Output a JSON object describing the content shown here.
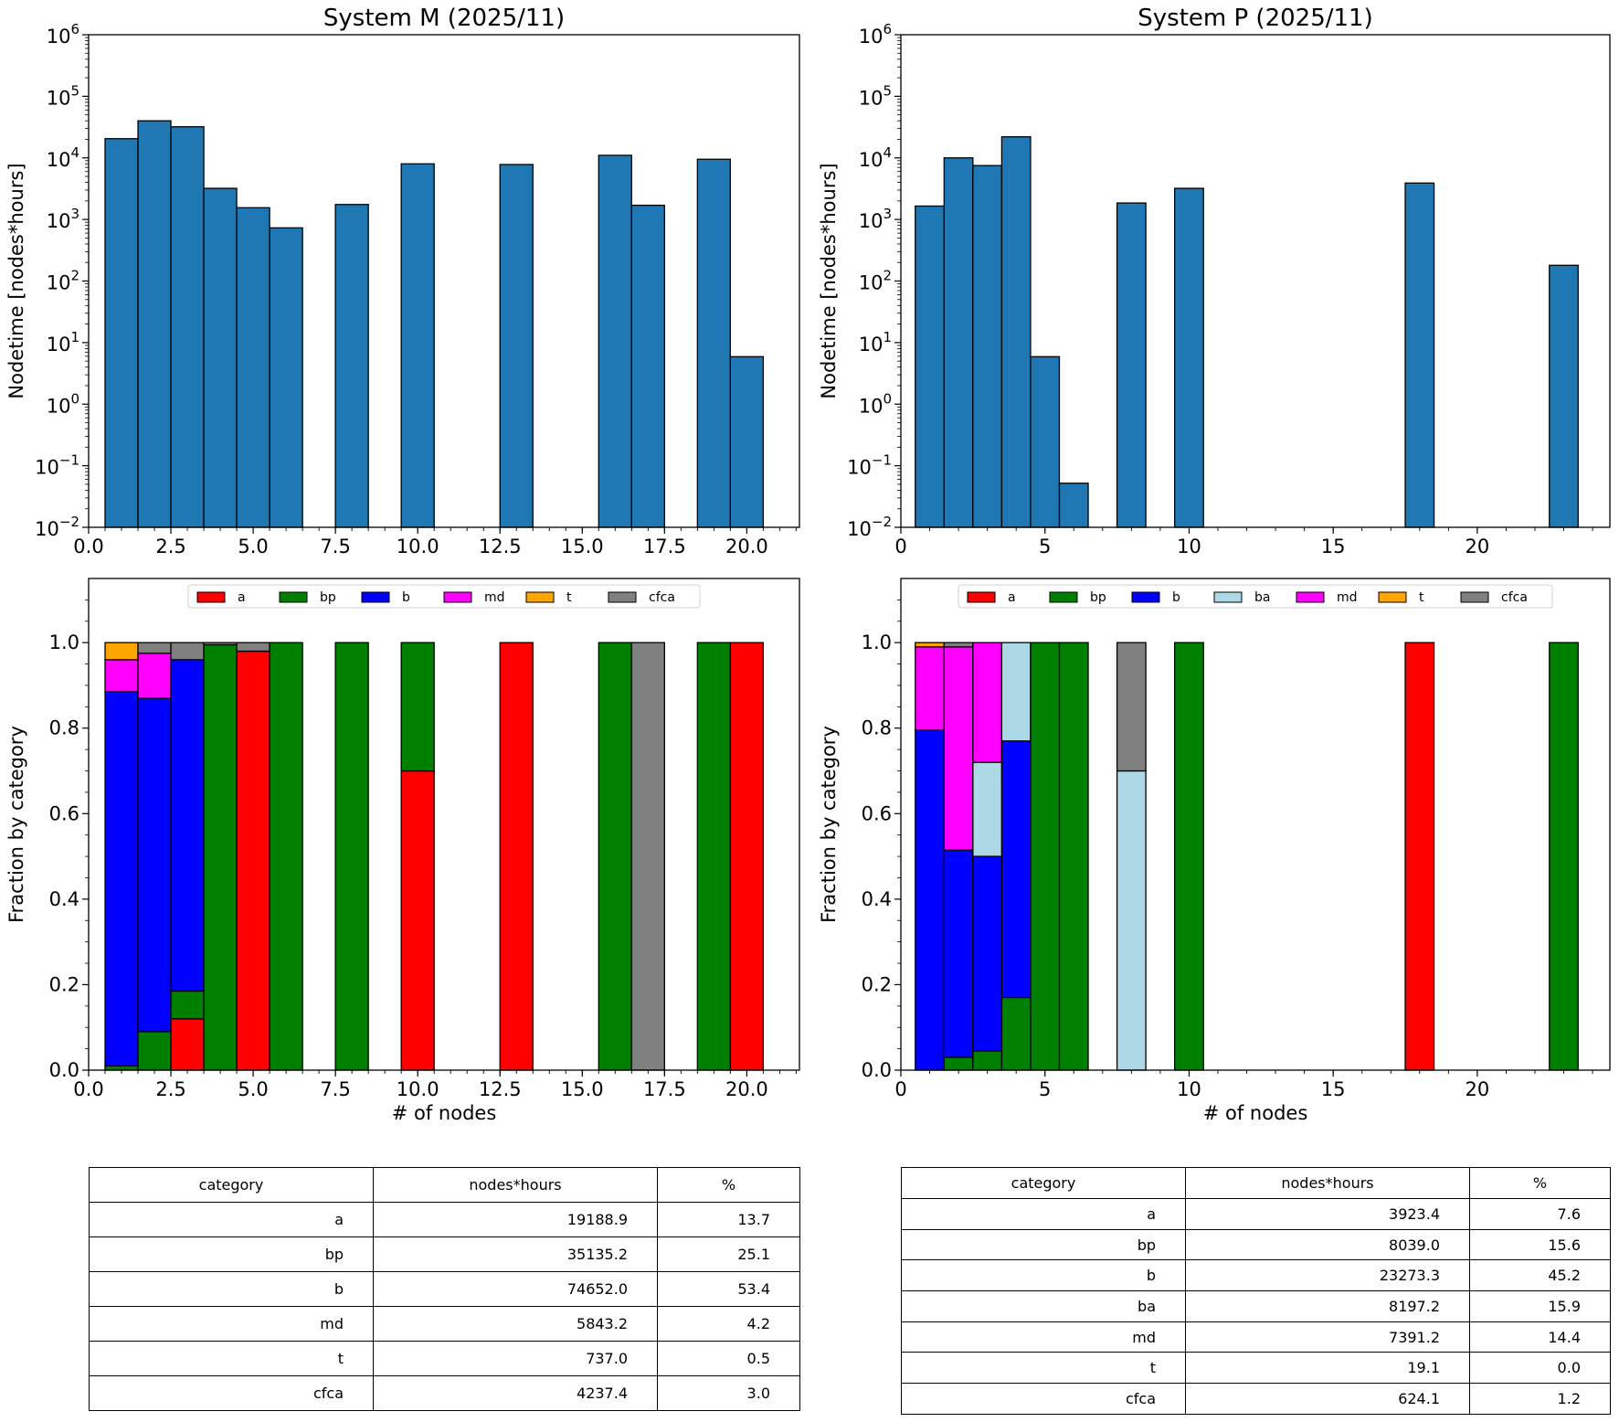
{
  "chart_data": [
    {
      "type": "bar",
      "panel": "top-left",
      "title": "System M (2025/11)",
      "xlabel": "",
      "ylabel": "Nodetime [nodes*hours]",
      "yscale": "log",
      "ylim": [
        0.01,
        1000000
      ],
      "xlim": [
        0,
        21.6
      ],
      "xticks": [
        "0.0",
        "2.5",
        "5.0",
        "7.5",
        "10.0",
        "12.5",
        "15.0",
        "17.5",
        "20.0"
      ],
      "xtick_values": [
        0,
        2.5,
        5,
        7.5,
        10,
        12.5,
        15,
        17.5,
        20
      ],
      "ytick_labels": [
        {
          "base": "10",
          "exp": "−2",
          "value": 0.01
        },
        {
          "base": "10",
          "exp": "−1",
          "value": 0.1
        },
        {
          "base": "10",
          "exp": "0",
          "value": 1
        },
        {
          "base": "10",
          "exp": "1",
          "value": 10
        },
        {
          "base": "10",
          "exp": "2",
          "value": 100
        },
        {
          "base": "10",
          "exp": "3",
          "value": 1000
        },
        {
          "base": "10",
          "exp": "4",
          "value": 10000
        },
        {
          "base": "10",
          "exp": "5",
          "value": 100000
        },
        {
          "base": "10",
          "exp": "6",
          "value": 1000000
        }
      ],
      "bar_color": "#1f77b4",
      "x": [
        1,
        2,
        3,
        4,
        5,
        6,
        8,
        10,
        13,
        16,
        17,
        19,
        20
      ],
      "values": [
        20500,
        40000,
        32000,
        3200,
        1550,
        730,
        1750,
        8000,
        7800,
        11000,
        1700,
        9500,
        5.9
      ]
    },
    {
      "type": "bar",
      "panel": "top-right",
      "title": "System P (2025/11)",
      "xlabel": "",
      "ylabel": "Nodetime [nodes*hours]",
      "yscale": "log",
      "ylim": [
        0.01,
        1000000
      ],
      "xlim": [
        0,
        24.6
      ],
      "xticks": [
        "0",
        "5",
        "10",
        "15",
        "20"
      ],
      "xtick_values": [
        0,
        5,
        10,
        15,
        20
      ],
      "ytick_labels": [
        {
          "base": "10",
          "exp": "−2",
          "value": 0.01
        },
        {
          "base": "10",
          "exp": "−1",
          "value": 0.1
        },
        {
          "base": "10",
          "exp": "0",
          "value": 1
        },
        {
          "base": "10",
          "exp": "1",
          "value": 10
        },
        {
          "base": "10",
          "exp": "2",
          "value": 100
        },
        {
          "base": "10",
          "exp": "3",
          "value": 1000
        },
        {
          "base": "10",
          "exp": "4",
          "value": 10000
        },
        {
          "base": "10",
          "exp": "5",
          "value": 100000
        },
        {
          "base": "10",
          "exp": "6",
          "value": 1000000
        }
      ],
      "bar_color": "#1f77b4",
      "x": [
        1,
        2,
        3,
        4,
        5,
        6,
        8,
        10,
        18,
        23
      ],
      "values": [
        1650,
        10000,
        7500,
        22000,
        5.9,
        0.052,
        1850,
        3200,
        3900,
        180
      ]
    },
    {
      "type": "bar",
      "stacked": true,
      "panel": "middle-left",
      "title": "",
      "xlabel": "# of nodes",
      "ylabel": "Fraction by category",
      "ylim": [
        0,
        1.15
      ],
      "xlim": [
        0,
        21.6
      ],
      "xticks": [
        "0.0",
        "2.5",
        "5.0",
        "7.5",
        "10.0",
        "12.5",
        "15.0",
        "17.5",
        "20.0"
      ],
      "xtick_values": [
        0,
        2.5,
        5,
        7.5,
        10,
        12.5,
        15,
        17.5,
        20
      ],
      "yticks": [
        "0.0",
        "0.2",
        "0.4",
        "0.6",
        "0.8",
        "1.0"
      ],
      "ytick_values": [
        0,
        0.2,
        0.4,
        0.6,
        0.8,
        1.0
      ],
      "legend_position": "top-center",
      "legend": [
        {
          "name": "a",
          "color": "#ff0000"
        },
        {
          "name": "bp",
          "color": "#008000"
        },
        {
          "name": "b",
          "color": "#0000ff"
        },
        {
          "name": "md",
          "color": "#ff00ff"
        },
        {
          "name": "t",
          "color": "#ffa500"
        },
        {
          "name": "cfca",
          "color": "#808080"
        }
      ],
      "x": [
        1,
        2,
        3,
        4,
        5,
        6,
        8,
        10,
        13,
        16,
        17,
        19,
        20
      ],
      "series": [
        {
          "name": "a",
          "color": "#ff0000",
          "values": [
            0,
            0,
            0.12,
            0,
            0.98,
            0,
            0,
            0.7,
            1.0,
            0,
            0,
            0,
            1.0
          ]
        },
        {
          "name": "bp",
          "color": "#008000",
          "values": [
            0.01,
            0.09,
            0.065,
            0.995,
            0,
            1.0,
            1.0,
            0.3,
            0,
            1.0,
            0,
            1.0,
            0
          ]
        },
        {
          "name": "b",
          "color": "#0000ff",
          "values": [
            0.875,
            0.78,
            0.775,
            0,
            0,
            0,
            0,
            0,
            0,
            0,
            0,
            0,
            0
          ]
        },
        {
          "name": "md",
          "color": "#ff00ff",
          "values": [
            0.075,
            0.105,
            0,
            0,
            0,
            0,
            0,
            0,
            0,
            0,
            0,
            0,
            0
          ]
        },
        {
          "name": "t",
          "color": "#ffa500",
          "values": [
            0.04,
            0,
            0,
            0,
            0,
            0,
            0,
            0,
            0,
            0,
            0,
            0,
            0
          ]
        },
        {
          "name": "cfca",
          "color": "#808080",
          "values": [
            0,
            0.025,
            0.04,
            0.005,
            0.02,
            0,
            0,
            0,
            0,
            0,
            1.0,
            0,
            0
          ]
        }
      ]
    },
    {
      "type": "bar",
      "stacked": true,
      "panel": "middle-right",
      "title": "",
      "xlabel": "# of nodes",
      "ylabel": "Fraction by category",
      "ylim": [
        0,
        1.15
      ],
      "xlim": [
        0,
        24.6
      ],
      "xticks": [
        "0",
        "5",
        "10",
        "15",
        "20"
      ],
      "xtick_values": [
        0,
        5,
        10,
        15,
        20
      ],
      "yticks": [
        "0.0",
        "0.2",
        "0.4",
        "0.6",
        "0.8",
        "1.0"
      ],
      "ytick_values": [
        0,
        0.2,
        0.4,
        0.6,
        0.8,
        1.0
      ],
      "legend_position": "top-center",
      "legend": [
        {
          "name": "a",
          "color": "#ff0000"
        },
        {
          "name": "bp",
          "color": "#008000"
        },
        {
          "name": "b",
          "color": "#0000ff"
        },
        {
          "name": "ba",
          "color": "#add8e6"
        },
        {
          "name": "md",
          "color": "#ff00ff"
        },
        {
          "name": "t",
          "color": "#ffa500"
        },
        {
          "name": "cfca",
          "color": "#808080"
        }
      ],
      "x": [
        1,
        2,
        3,
        4,
        5,
        6,
        8,
        10,
        18,
        23
      ],
      "series": [
        {
          "name": "a",
          "color": "#ff0000",
          "values": [
            0,
            0,
            0,
            0,
            0,
            0,
            0,
            0,
            1.0,
            0
          ]
        },
        {
          "name": "bp",
          "color": "#008000",
          "values": [
            0,
            0.03,
            0.045,
            0.17,
            1.0,
            1.0,
            0,
            1.0,
            0,
            1.0
          ]
        },
        {
          "name": "b",
          "color": "#0000ff",
          "values": [
            0.795,
            0.485,
            0.455,
            0.6,
            0,
            0,
            0,
            0,
            0,
            0
          ]
        },
        {
          "name": "ba",
          "color": "#add8e6",
          "values": [
            0,
            0,
            0.22,
            0.23,
            0,
            0,
            0.7,
            0,
            0,
            0
          ]
        },
        {
          "name": "md",
          "color": "#ff00ff",
          "values": [
            0.195,
            0.475,
            0.28,
            0,
            0,
            0,
            0,
            0,
            0,
            0
          ]
        },
        {
          "name": "t",
          "color": "#ffa500",
          "values": [
            0.01,
            0,
            0,
            0,
            0,
            0,
            0,
            0,
            0,
            0
          ]
        },
        {
          "name": "cfca",
          "color": "#808080",
          "values": [
            0,
            0.01,
            0,
            0,
            0,
            0,
            0.3,
            0,
            0,
            0
          ]
        }
      ]
    }
  ],
  "tables": [
    {
      "headers": [
        "category",
        "nodes*hours",
        "%"
      ],
      "rows": [
        [
          "a",
          "19188.9",
          "13.7"
        ],
        [
          "bp",
          "35135.2",
          "25.1"
        ],
        [
          "b",
          "74652.0",
          "53.4"
        ],
        [
          "md",
          "5843.2",
          "4.2"
        ],
        [
          "t",
          "737.0",
          "0.5"
        ],
        [
          "cfca",
          "4237.4",
          "3.0"
        ]
      ]
    },
    {
      "headers": [
        "category",
        "nodes*hours",
        "%"
      ],
      "rows": [
        [
          "a",
          "3923.4",
          "7.6"
        ],
        [
          "bp",
          "8039.0",
          "15.6"
        ],
        [
          "b",
          "23273.3",
          "45.2"
        ],
        [
          "ba",
          "8197.2",
          "15.9"
        ],
        [
          "md",
          "7391.2",
          "14.4"
        ],
        [
          "t",
          "19.1",
          "0.0"
        ],
        [
          "cfca",
          "624.1",
          "1.2"
        ]
      ]
    }
  ]
}
